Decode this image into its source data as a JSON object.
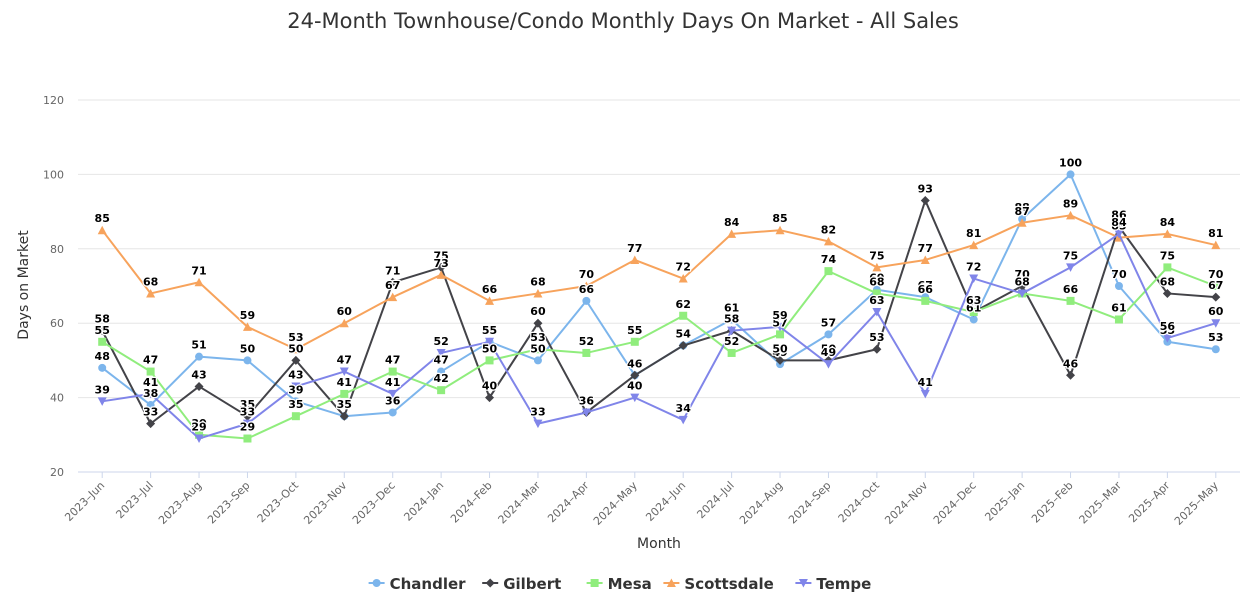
{
  "chart_data": {
    "type": "line",
    "title": "24-Month Townhouse/Condo Monthly Days On Market - All Sales",
    "xlabel": "Month",
    "ylabel": "Days on Market",
    "ylim": [
      20,
      120
    ],
    "yticks": [
      20,
      40,
      60,
      80,
      100,
      120
    ],
    "grid": true,
    "legend": "bottom-center",
    "categories": [
      "2023–Jun",
      "2023–Jul",
      "2023–Aug",
      "2023–Sep",
      "2023–Oct",
      "2023–Nov",
      "2023–Dec",
      "2024–Jan",
      "2024–Feb",
      "2024–Mar",
      "2024–Apr",
      "2024–May",
      "2024–Jun",
      "2024–Jul",
      "2024–Aug",
      "2024–Sep",
      "2024–Oct",
      "2024–Nov",
      "2024–Dec",
      "2025–Jan",
      "2025–Feb",
      "2025–Mar",
      "2025–Apr",
      "2025–May"
    ],
    "series": [
      {
        "name": "Chandler",
        "color": "#7cb5ec",
        "marker": "circle",
        "values": [
          48,
          38,
          51,
          50,
          39,
          35,
          36,
          47,
          55,
          50,
          66,
          46,
          54,
          61,
          49,
          57,
          69,
          67,
          61,
          88,
          100,
          70,
          55,
          53
        ]
      },
      {
        "name": "Gilbert",
        "color": "#434348",
        "marker": "diamond",
        "values": [
          58,
          33,
          43,
          35,
          50,
          35,
          71,
          75,
          40,
          60,
          36,
          46,
          54,
          58,
          50,
          50,
          53,
          93,
          63,
          70,
          46,
          86,
          68,
          67
        ]
      },
      {
        "name": "Mesa",
        "color": "#90ed7d",
        "marker": "square",
        "values": [
          55,
          47,
          30,
          29,
          35,
          41,
          47,
          42,
          50,
          53,
          52,
          55,
          62,
          52,
          57,
          74,
          68,
          66,
          63,
          68,
          66,
          61,
          75,
          70
        ]
      },
      {
        "name": "Scottsdale",
        "color": "#f7a35c",
        "marker": "triangle",
        "values": [
          85,
          68,
          71,
          59,
          53,
          60,
          67,
          73,
          66,
          68,
          70,
          77,
          72,
          84,
          85,
          82,
          75,
          77,
          81,
          87,
          89,
          83,
          84,
          81
        ]
      },
      {
        "name": "Tempe",
        "color": "#8085e9",
        "marker": "triangle-down",
        "values": [
          39,
          41,
          29,
          33,
          43,
          47,
          41,
          52,
          55,
          33,
          36,
          40,
          34,
          58,
          59,
          49,
          63,
          41,
          72,
          68,
          75,
          84,
          56,
          60
        ]
      }
    ]
  }
}
